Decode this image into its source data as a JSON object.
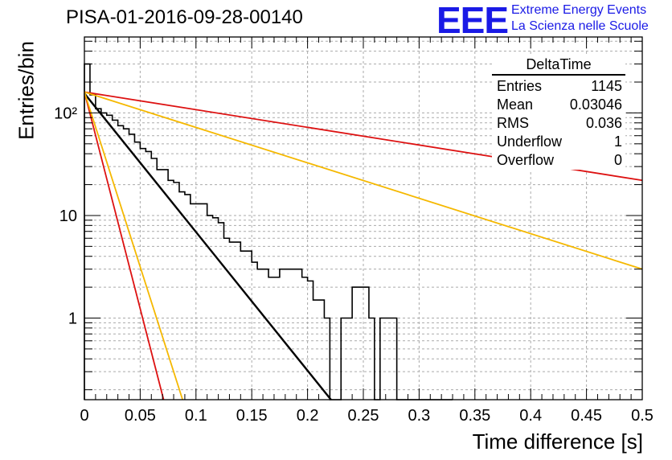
{
  "header": {
    "title": "PISA-01-2016-09-28-00140",
    "logo_text": "EEE",
    "logo_line1": "Extreme Energy Events",
    "logo_line2": "La Scienza nelle Scuole"
  },
  "stats_box": {
    "title": "DeltaTime",
    "rows": [
      {
        "label": "Entries",
        "value": "1145"
      },
      {
        "label": "Mean",
        "value": "0.03046"
      },
      {
        "label": "RMS",
        "value": "0.036"
      },
      {
        "label": "Underflow",
        "value": "1"
      },
      {
        "label": "Overflow",
        "value": "0"
      }
    ]
  },
  "colors": {
    "histogram": "#000000",
    "fit": "#000000",
    "red_curves": "#dd1111",
    "orange_curves": "#f5b800",
    "grid": "#aaaaaa"
  },
  "chart_data": {
    "type": "line",
    "title": "PISA-01-2016-09-28-00140",
    "xlabel": "Time difference [s]",
    "ylabel": "Entries/bin",
    "x_scale": "linear",
    "y_scale": "log",
    "xlim": [
      0,
      0.5
    ],
    "ylim": [
      0.16,
      550
    ],
    "grid": true,
    "x_ticks": [
      "0",
      "0.05",
      "0.1",
      "0.15",
      "0.2",
      "0.25",
      "0.3",
      "0.35",
      "0.4",
      "0.45",
      "0.5"
    ],
    "y_tick_labels": [
      {
        "value": 1,
        "label": "1"
      },
      {
        "value": 10,
        "label": "10"
      },
      {
        "value": 100,
        "label": "10²"
      }
    ],
    "histogram": {
      "name": "DeltaTime",
      "bin_width": 0.005,
      "x_start": 0,
      "values": [
        300,
        150,
        110,
        100,
        95,
        85,
        75,
        70,
        62,
        52,
        45,
        42,
        36,
        28,
        28,
        22,
        21,
        17,
        16,
        13,
        13,
        13,
        10,
        9.5,
        8.5,
        6,
        5.5,
        5.5,
        4.5,
        4.5,
        3.5,
        3,
        3,
        2.5,
        2.5,
        3,
        3,
        3,
        3,
        2.5,
        2.3,
        1.5,
        1.5,
        1,
        0.1,
        0.1,
        1,
        1,
        2,
        2,
        2,
        1,
        0.1,
        1,
        1,
        1,
        0.1,
        0.1,
        0.1,
        0.1,
        0.1,
        0.1,
        0.1,
        0.1,
        0.1,
        0.1
      ]
    },
    "series": [
      {
        "x": [
          0,
          0.221
        ],
        "y": [
          155,
          0.16
        ]
      },
      {
        "x": [
          0,
          0.5
        ],
        "y": [
          160,
          22
        ]
      },
      {
        "x": [
          0,
          0.5
        ],
        "y": [
          160,
          3
        ]
      },
      {
        "x": [
          0,
          0.071
        ],
        "y": [
          160,
          0.16
        ]
      },
      {
        "x": [
          0,
          0.088
        ],
        "y": [
          160,
          0.16
        ]
      }
    ]
  }
}
